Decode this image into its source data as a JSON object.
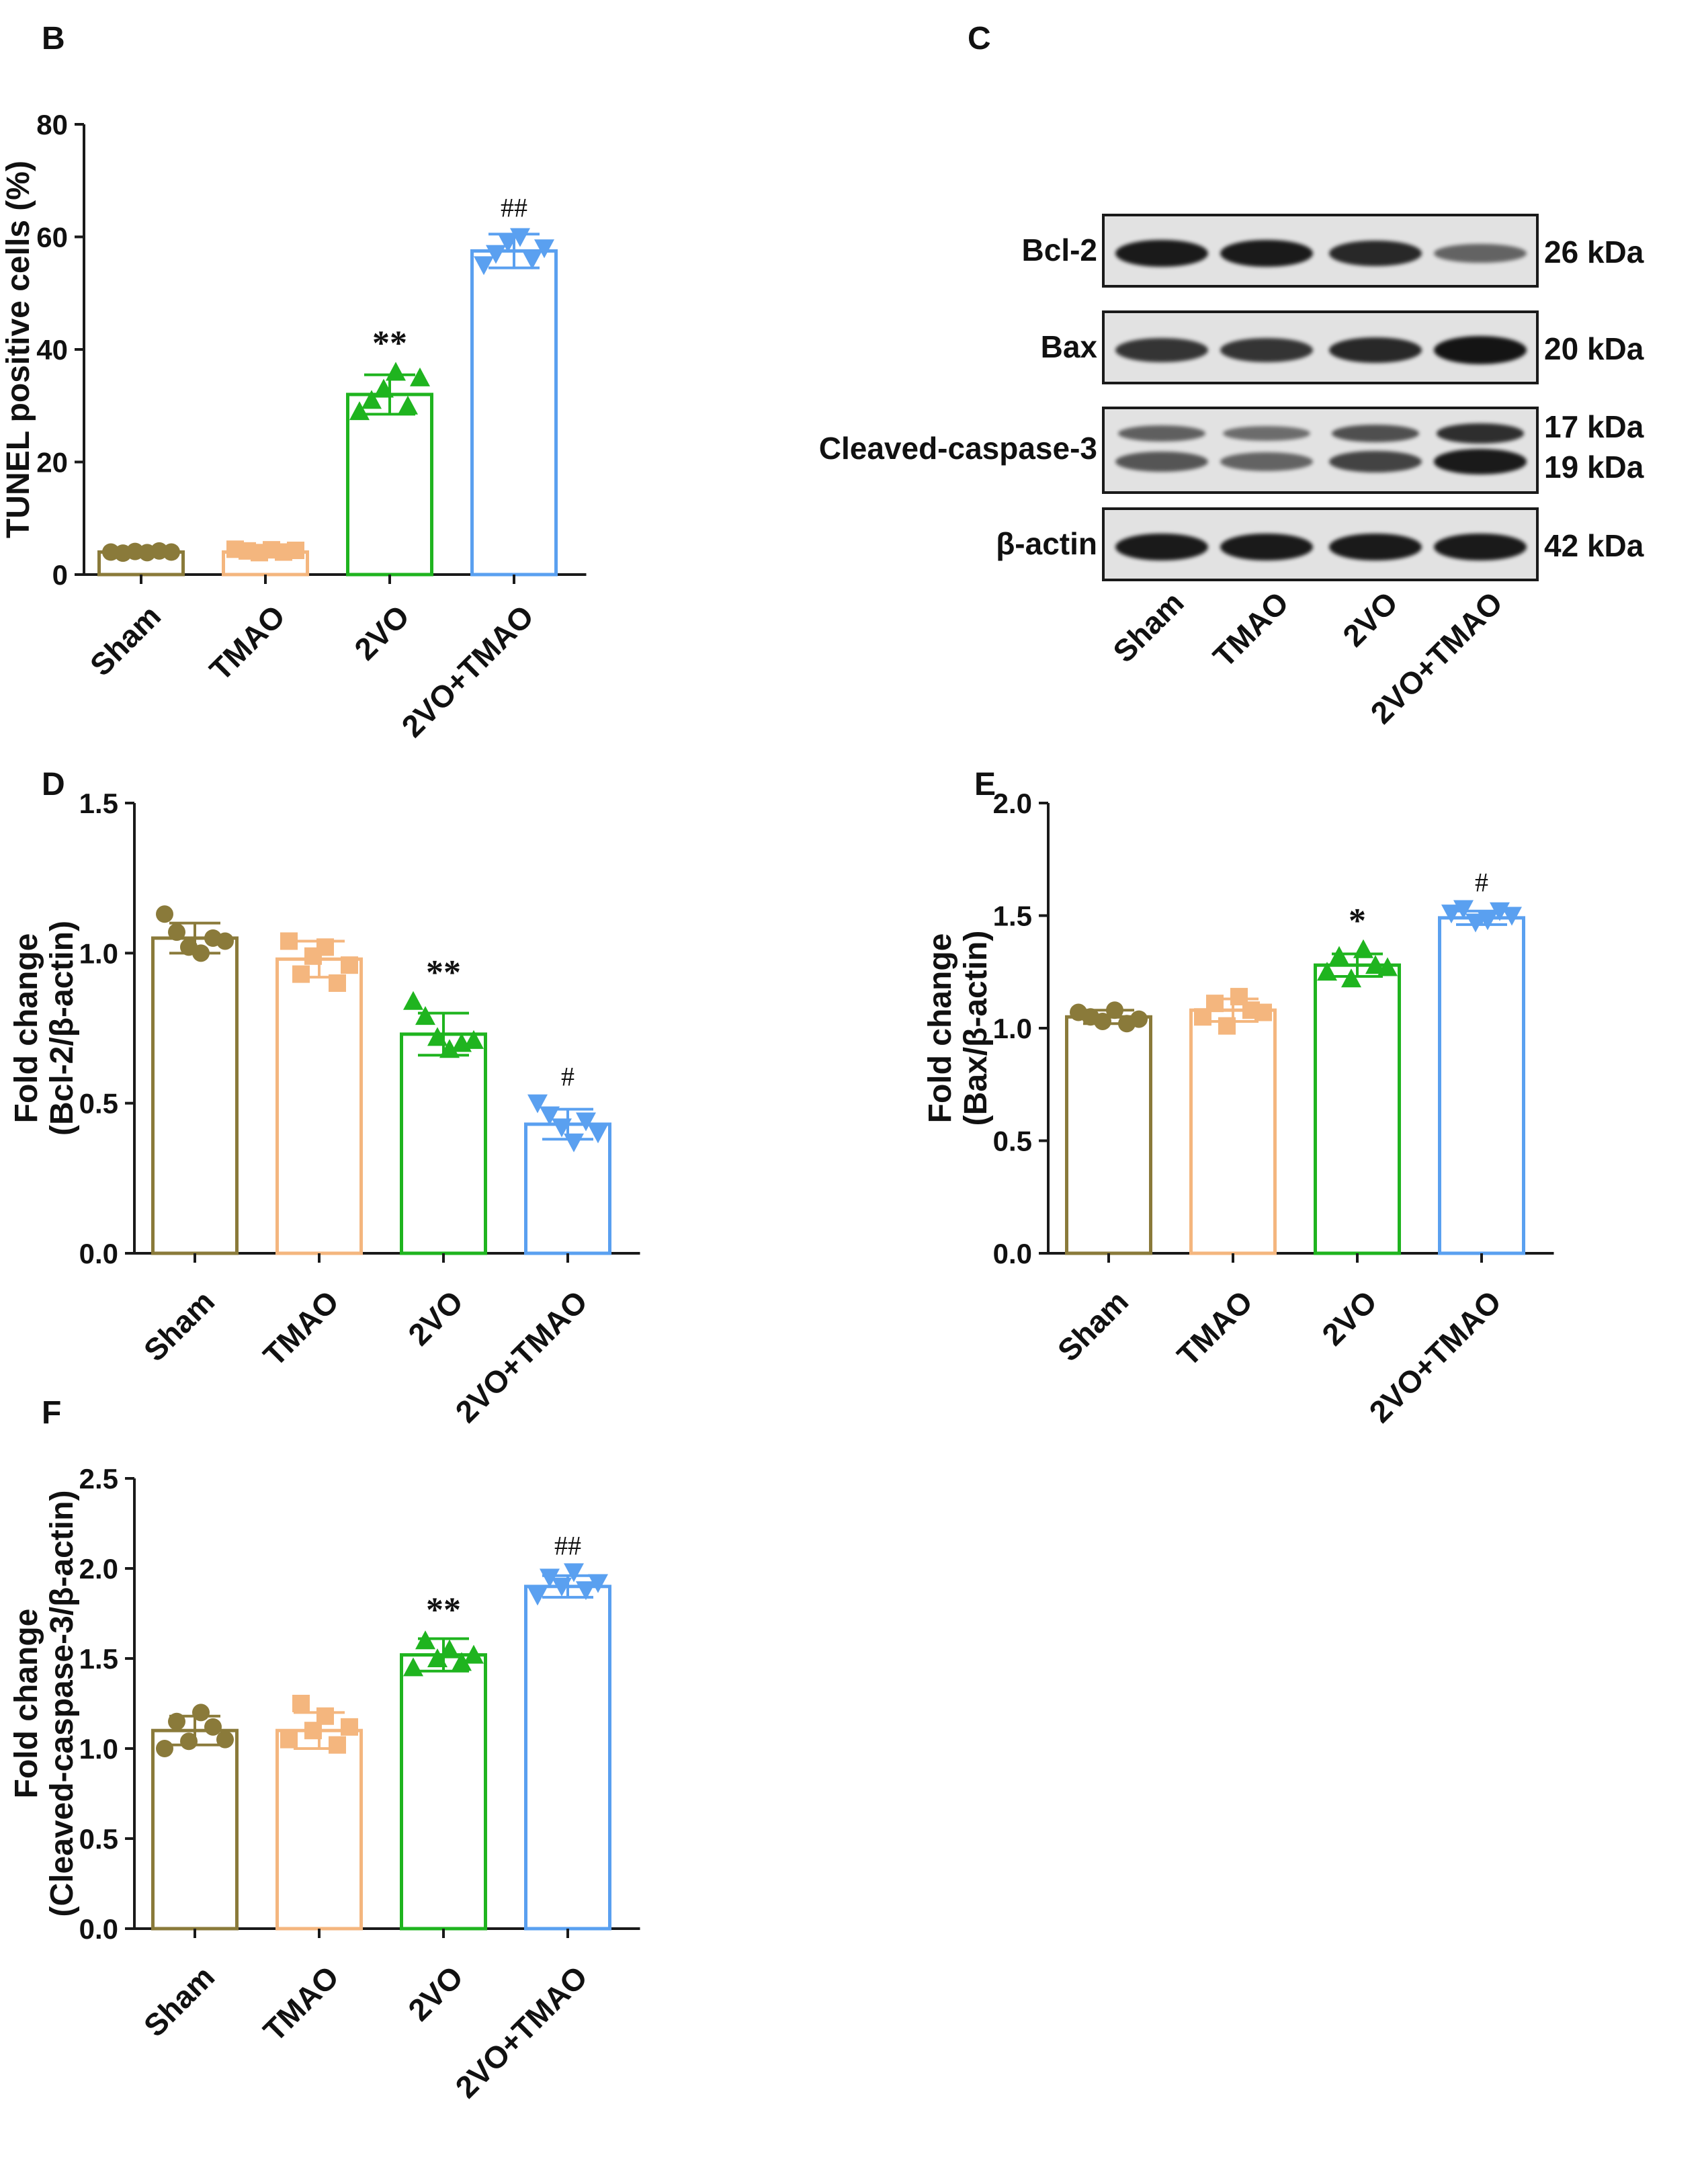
{
  "panels": {
    "B": {
      "label": "B"
    },
    "C": {
      "label": "C"
    },
    "D": {
      "label": "D"
    },
    "E": {
      "label": "E"
    },
    "F": {
      "label": "F"
    }
  },
  "colors": {
    "Sham": "#8a7a3a",
    "TMAO": "#f4b67e",
    "2VO": "#1fb41f",
    "2VO+TMAO": "#5aa0f0",
    "axis": "#1a1a1a"
  },
  "chart_data": [
    {
      "panel": "B",
      "type": "bar",
      "title": "",
      "xlabel": "",
      "ylabel": "TUNEL positive cells (%)",
      "categories": [
        "Sham",
        "TMAO",
        "2VO",
        "2VO+TMAO"
      ],
      "values": [
        4,
        4,
        32,
        57.5
      ],
      "errors": [
        0.6,
        0.6,
        3.5,
        3
      ],
      "points": [
        [
          4,
          3.8,
          4.1,
          3.9,
          4.2,
          4
        ],
        [
          4.5,
          4.2,
          3.9,
          4.4,
          4,
          4.3
        ],
        [
          29,
          31,
          33,
          36,
          30,
          35
        ],
        [
          55,
          57,
          59,
          60,
          56,
          58
        ]
      ],
      "markers": [
        "circle",
        "square",
        "triangle-up",
        "triangle-down"
      ],
      "significance": [
        "",
        "",
        "**",
        "##"
      ],
      "yticks": [
        "0",
        "20",
        "40",
        "60",
        "80"
      ],
      "ylim": [
        0,
        80
      ]
    },
    {
      "panel": "D",
      "type": "bar",
      "title": "",
      "xlabel": "",
      "ylabel": "Fold change",
      "ylabel2": "(Bcl-2/β-actin)",
      "categories": [
        "Sham",
        "TMAO",
        "2VO",
        "2VO+TMAO"
      ],
      "values": [
        1.05,
        0.98,
        0.73,
        0.43
      ],
      "errors": [
        0.05,
        0.06,
        0.07,
        0.05
      ],
      "points": [
        [
          1.13,
          1.07,
          1.02,
          1.0,
          1.05,
          1.04
        ],
        [
          1.04,
          0.93,
          0.99,
          1.02,
          0.9,
          0.96
        ],
        [
          0.84,
          0.79,
          0.72,
          0.68,
          0.7,
          0.71
        ],
        [
          0.5,
          0.46,
          0.42,
          0.37,
          0.44,
          0.4
        ]
      ],
      "markers": [
        "circle",
        "square",
        "triangle-up",
        "triangle-down"
      ],
      "significance": [
        "",
        "",
        "**",
        "#"
      ],
      "yticks": [
        "0.0",
        "0.5",
        "1.0",
        "1.5"
      ],
      "ylim": [
        0,
        1.5
      ]
    },
    {
      "panel": "E",
      "type": "bar",
      "title": "",
      "xlabel": "",
      "ylabel": "Fold change",
      "ylabel2": "(Bax/β-actin)",
      "categories": [
        "Sham",
        "TMAO",
        "2VO",
        "2VO+TMAO"
      ],
      "values": [
        1.05,
        1.08,
        1.28,
        1.49
      ],
      "errors": [
        0.03,
        0.05,
        0.05,
        0.03
      ],
      "points": [
        [
          1.07,
          1.05,
          1.03,
          1.08,
          1.02,
          1.04
        ],
        [
          1.05,
          1.11,
          1.01,
          1.14,
          1.08,
          1.07
        ],
        [
          1.25,
          1.32,
          1.22,
          1.35,
          1.28,
          1.27
        ],
        [
          1.51,
          1.53,
          1.47,
          1.48,
          1.52,
          1.5
        ]
      ],
      "markers": [
        "circle",
        "square",
        "triangle-up",
        "triangle-down"
      ],
      "significance": [
        "",
        "",
        "*",
        "#"
      ],
      "yticks": [
        "0.0",
        "0.5",
        "1.0",
        "1.5",
        "2.0"
      ],
      "ylim": [
        0,
        2.0
      ]
    },
    {
      "panel": "F",
      "type": "bar",
      "title": "",
      "xlabel": "",
      "ylabel": "Fold change",
      "ylabel2": "(Cleaved-caspase-3/β-actin)",
      "categories": [
        "Sham",
        "TMAO",
        "2VO",
        "2VO+TMAO"
      ],
      "values": [
        1.1,
        1.1,
        1.52,
        1.9
      ],
      "errors": [
        0.08,
        0.1,
        0.09,
        0.06
      ],
      "points": [
        [
          1.0,
          1.15,
          1.04,
          1.2,
          1.12,
          1.05
        ],
        [
          1.05,
          1.25,
          1.1,
          1.18,
          1.02,
          1.12
        ],
        [
          1.45,
          1.6,
          1.5,
          1.55,
          1.48,
          1.52
        ],
        [
          1.85,
          1.95,
          1.9,
          1.98,
          1.88,
          1.92
        ]
      ],
      "markers": [
        "circle",
        "square",
        "triangle-up",
        "triangle-down"
      ],
      "significance": [
        "",
        "",
        "**",
        "##"
      ],
      "yticks": [
        "0.0",
        "0.5",
        "1.0",
        "1.5",
        "2.0",
        "2.5"
      ],
      "ylim": [
        0,
        2.5
      ]
    }
  ],
  "blot": {
    "panel": "C",
    "rows": [
      {
        "label": "Bcl-2",
        "kda": "26 kDa",
        "intensity": [
          0.95,
          0.95,
          0.85,
          0.4
        ]
      },
      {
        "label": "Bax",
        "kda": "20 kDa",
        "intensity": [
          0.75,
          0.75,
          0.85,
          1.0
        ]
      },
      {
        "label": "Cleaved-caspase-3",
        "kda": "17 kDa",
        "kda2": "19 kDa",
        "intensity": [
          0.5,
          0.4,
          0.65,
          0.95
        ]
      },
      {
        "label": "β-actin",
        "kda": "42 kDa",
        "intensity": [
          0.95,
          0.95,
          0.95,
          0.95
        ]
      }
    ],
    "lanes": [
      "Sham",
      "TMAO",
      "2VO",
      "2VO+TMAO"
    ]
  }
}
